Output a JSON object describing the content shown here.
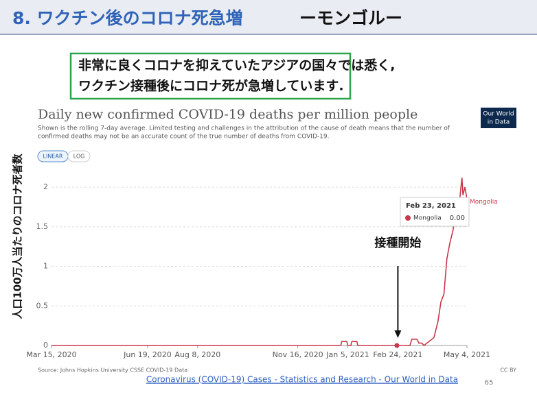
{
  "slide": {
    "title": "8. ワクチン後のコロナ死急増",
    "title_suffix": "ーモンゴルー",
    "callout": [
      "非常に良くコロナを抑えていたアジアの国々では悉く,",
      "ワクチン接種後にコロナ死が急増しています."
    ],
    "link": "Coronavirus (COVID-19) Cases - Statistics and Research - Our World in Data",
    "page_number": "65"
  },
  "chart_data": {
    "type": "line",
    "title": "Daily new confirmed COVID-19 deaths per million people",
    "subtitle": [
      "Shown is the rolling 7-day average. Limited testing and challenges in the attribution of the cause of death means that the number of",
      "confirmed deaths may not be an accurate count of the true number of deaths from COVID-19."
    ],
    "logo": [
      "Our World",
      "in Data"
    ],
    "scale_buttons": [
      "LINEAR",
      "LOG"
    ],
    "log_scale": false,
    "y_label": "人口100万人当たりのコロナ死者数",
    "annotation": "接種開始",
    "annotation_x": "2021-02-24",
    "source": "Source: Johns Hopkins University CSSE COVID-19 Data",
    "license": "CC BY",
    "x": [
      "2020-03-15",
      "2020-12-29",
      "2020-12-30",
      "2021-01-04",
      "2021-01-05",
      "2021-01-08",
      "2021-01-09",
      "2021-01-14",
      "2021-01-15",
      "2021-03-08",
      "2021-03-10",
      "2021-03-15",
      "2021-03-17",
      "2021-03-20",
      "2021-03-22",
      "2021-03-27",
      "2021-04-01",
      "2021-04-05",
      "2021-04-08",
      "2021-04-11",
      "2021-04-14",
      "2021-04-17",
      "2021-04-20",
      "2021-04-23",
      "2021-04-26",
      "2021-04-29",
      "2021-04-30",
      "2021-05-02",
      "2021-05-04"
    ],
    "series": [
      {
        "name": "Mongolia",
        "color": "#c8374a",
        "values": [
          0,
          0,
          0.05,
          0.05,
          0,
          0,
          0.05,
          0.05,
          0,
          0,
          0.08,
          0.08,
          0.03,
          0.03,
          0,
          0.05,
          0.1,
          0.3,
          0.55,
          0.65,
          1.1,
          1.3,
          1.45,
          1.7,
          1.75,
          2.12,
          1.9,
          2.0,
          1.85
        ]
      }
    ],
    "xlim": [
      "2020-03-15",
      "2021-05-04"
    ],
    "xticks": [
      {
        "value": "2020-03-15",
        "label": "Mar 15, 2020"
      },
      {
        "value": "2020-06-19",
        "label": "Jun 19, 2020"
      },
      {
        "value": "2020-08-08",
        "label": "Aug 8, 2020"
      },
      {
        "value": "2020-11-16",
        "label": "Nov 16, 2020"
      },
      {
        "value": "2021-01-05",
        "label": "Jan 5, 2021"
      },
      {
        "value": "2021-02-24",
        "label": "Feb 24, 2021"
      },
      {
        "value": "2021-05-04",
        "label": "May 4, 2021"
      }
    ],
    "ylim": [
      0,
      2.2
    ],
    "yticks": [
      0,
      0.5,
      1,
      1.5,
      2
    ],
    "grid": true,
    "tooltip": {
      "x_label": "Feb 23, 2021",
      "x": "2021-02-23",
      "value": 0,
      "value_label": "0.00"
    }
  }
}
